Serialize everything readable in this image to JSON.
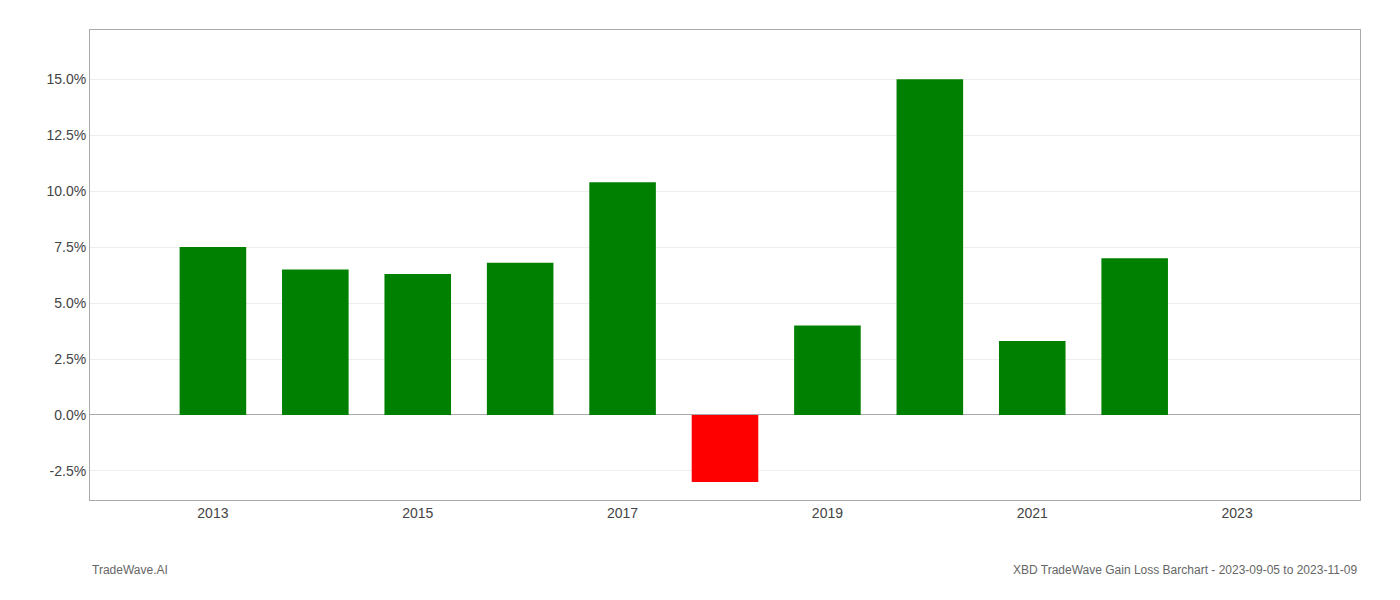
{
  "chart_data": {
    "type": "bar",
    "x": [
      2013,
      2014,
      2015,
      2016,
      2017,
      2018,
      2019,
      2020,
      2021,
      2022
    ],
    "values": [
      0.075,
      0.065,
      0.063,
      0.068,
      0.104,
      -0.03,
      0.04,
      0.15,
      0.033,
      0.07
    ],
    "colors": [
      "#008000",
      "#008000",
      "#008000",
      "#008000",
      "#008000",
      "#ff0000",
      "#008000",
      "#008000",
      "#008000",
      "#008000"
    ],
    "xlim": [
      2011.8,
      2024.2
    ],
    "xticks": [
      2013,
      2015,
      2017,
      2019,
      2021,
      2023
    ],
    "ylim": [
      -0.038,
      0.172
    ],
    "yticks": [
      {
        "value": -0.025,
        "label": "-2.5%"
      },
      {
        "value": 0.0,
        "label": "0.0%"
      },
      {
        "value": 0.025,
        "label": "2.5%"
      },
      {
        "value": 0.05,
        "label": "5.0%"
      },
      {
        "value": 0.075,
        "label": "7.5%"
      },
      {
        "value": 0.1,
        "label": "10.0%"
      },
      {
        "value": 0.125,
        "label": "12.5%"
      },
      {
        "value": 0.15,
        "label": "15.0%"
      }
    ],
    "grid": true,
    "annotations": [
      "TradeWave.AI",
      "XBD TradeWave Gain Loss Barchart - 2023-09-05 to 2023-11-09"
    ]
  }
}
